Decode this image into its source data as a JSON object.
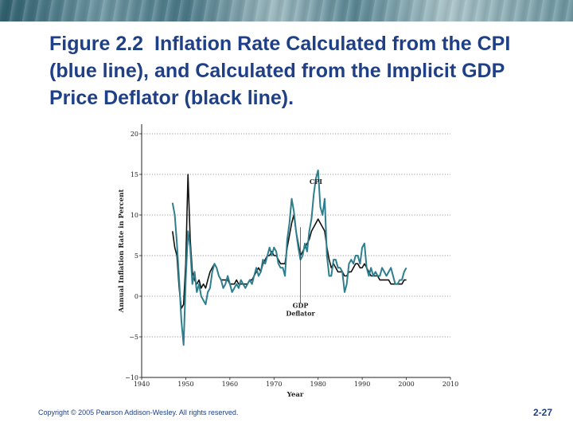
{
  "slide": {
    "figure_number": "Figure 2.2",
    "title": "Inflation Rate Calculated from the CPI (blue line), and Calculated from the Implicit GDP Price Deflator (black line).",
    "copyright": "Copyright © 2005 Pearson Addison-Wesley. All rights reserved.",
    "page_number": "2-27"
  },
  "colors": {
    "title": "#1f3f86",
    "cpi": "#2e7f8e",
    "deflator": "#111111",
    "grid": "#777777"
  },
  "chart_data": {
    "type": "line",
    "xlabel": "Year",
    "ylabel": "Annual Inflation Rate in Percent",
    "xlim": [
      1940,
      2010
    ],
    "ylim": [
      -10,
      20
    ],
    "xticks": [
      1940,
      1950,
      1960,
      1970,
      1980,
      1990,
      2000,
      2010
    ],
    "yticks": [
      -10,
      -5,
      0,
      5,
      10,
      15,
      20
    ],
    "ytick_labels": [
      "−10",
      "−5",
      "0",
      "5",
      "10",
      "15",
      "20"
    ],
    "grid": "horizontal dotted",
    "annotations": [
      {
        "text": "CPI",
        "x": 1979.5,
        "y": 13.8
      },
      {
        "text": "GDP",
        "x": 1976,
        "y": -1.4
      },
      {
        "text": "Deflator",
        "x": 1976,
        "y": -2.4
      }
    ],
    "series": [
      {
        "label": "CPI",
        "color": "#2e7f8e",
        "x": [
          1947.0,
          1947.5,
          1948.0,
          1948.5,
          1949.0,
          1949.5,
          1950.0,
          1950.5,
          1951.0,
          1951.5,
          1952.0,
          1952.5,
          1953.0,
          1953.5,
          1954.0,
          1954.5,
          1955.0,
          1955.5,
          1956.0,
          1956.5,
          1957.0,
          1957.5,
          1958.0,
          1958.5,
          1959.0,
          1959.5,
          1960.0,
          1960.5,
          1961.0,
          1961.5,
          1962.0,
          1962.5,
          1963.0,
          1963.5,
          1964.0,
          1964.5,
          1965.0,
          1965.5,
          1966.0,
          1966.5,
          1967.0,
          1967.5,
          1968.0,
          1968.5,
          1969.0,
          1969.5,
          1970.0,
          1970.5,
          1971.0,
          1971.5,
          1972.0,
          1972.5,
          1973.0,
          1973.5,
          1974.0,
          1974.5,
          1975.0,
          1975.5,
          1976.0,
          1976.5,
          1977.0,
          1977.5,
          1978.0,
          1978.5,
          1979.0,
          1979.5,
          1980.0,
          1980.5,
          1981.0,
          1981.5,
          1982.0,
          1982.5,
          1983.0,
          1983.5,
          1984.0,
          1984.5,
          1985.0,
          1985.5,
          1986.0,
          1986.5,
          1987.0,
          1987.5,
          1988.0,
          1988.5,
          1989.0,
          1989.5,
          1990.0,
          1990.5,
          1991.0,
          1991.5,
          1992.0,
          1992.5,
          1993.0,
          1993.5,
          1994.0,
          1994.5,
          1995.0,
          1995.5,
          1996.0,
          1996.5,
          1997.0,
          1997.5,
          1998.0,
          1998.5,
          1999.0,
          1999.5,
          2000.0
        ],
        "y": [
          11.5,
          10.0,
          6.5,
          2.0,
          -3.0,
          -6.0,
          2.0,
          8.0,
          6.0,
          1.5,
          3.0,
          0.5,
          1.5,
          0.0,
          -0.5,
          -1.0,
          0.5,
          1.0,
          3.0,
          4.0,
          3.5,
          2.5,
          2.0,
          1.0,
          1.5,
          2.5,
          1.5,
          0.5,
          1.0,
          1.5,
          1.0,
          2.0,
          1.5,
          1.0,
          1.5,
          2.0,
          1.5,
          2.5,
          3.5,
          2.5,
          3.0,
          4.5,
          4.0,
          5.0,
          6.0,
          5.0,
          6.0,
          5.5,
          4.0,
          3.5,
          3.5,
          2.5,
          7.0,
          9.0,
          12.0,
          10.5,
          8.0,
          6.0,
          4.5,
          5.0,
          6.5,
          5.5,
          8.0,
          9.5,
          12.5,
          14.5,
          15.5,
          11.0,
          10.0,
          12.0,
          5.0,
          2.5,
          2.5,
          4.5,
          4.5,
          3.5,
          3.5,
          3.0,
          0.5,
          1.5,
          4.0,
          4.5,
          4.0,
          5.0,
          5.0,
          4.0,
          6.0,
          6.5,
          3.5,
          2.5,
          3.5,
          2.5,
          3.0,
          2.5,
          2.5,
          3.5,
          3.0,
          2.5,
          3.0,
          3.5,
          2.5,
          1.5,
          1.5,
          2.0,
          2.0,
          3.0,
          3.5
        ]
      },
      {
        "label": "GDP Deflator",
        "color": "#111111",
        "x": [
          1947.0,
          1947.5,
          1948.0,
          1948.5,
          1949.0,
          1949.5,
          1950.0,
          1950.5,
          1951.0,
          1951.5,
          1952.0,
          1952.5,
          1953.0,
          1953.5,
          1954.0,
          1954.5,
          1955.0,
          1955.5,
          1956.0,
          1956.5,
          1957.0,
          1957.5,
          1958.0,
          1958.5,
          1959.0,
          1959.5,
          1960.0,
          1960.5,
          1961.0,
          1961.5,
          1962.0,
          1962.5,
          1963.0,
          1963.5,
          1964.0,
          1964.5,
          1965.0,
          1965.5,
          1966.0,
          1966.5,
          1967.0,
          1967.5,
          1968.0,
          1968.5,
          1969.0,
          1969.5,
          1970.0,
          1970.5,
          1971.0,
          1971.5,
          1972.0,
          1972.5,
          1973.0,
          1973.5,
          1974.0,
          1974.5,
          1975.0,
          1975.5,
          1976.0,
          1976.5,
          1977.0,
          1977.5,
          1978.0,
          1978.5,
          1979.0,
          1979.5,
          1980.0,
          1980.5,
          1981.0,
          1981.5,
          1982.0,
          1982.5,
          1983.0,
          1983.5,
          1984.0,
          1984.5,
          1985.0,
          1985.5,
          1986.0,
          1986.5,
          1987.0,
          1987.5,
          1988.0,
          1988.5,
          1989.0,
          1989.5,
          1990.0,
          1990.5,
          1991.0,
          1991.5,
          1992.0,
          1992.5,
          1993.0,
          1993.5,
          1994.0,
          1994.5,
          1995.0,
          1995.5,
          1996.0,
          1996.5,
          1997.0,
          1997.5,
          1998.0,
          1998.5,
          1999.0,
          1999.5,
          2000.0
        ],
        "y": [
          8.0,
          6.0,
          5.0,
          1.0,
          -1.5,
          -1.0,
          4.0,
          15.0,
          7.0,
          3.0,
          2.0,
          1.5,
          2.0,
          1.0,
          1.5,
          1.0,
          2.0,
          3.0,
          3.5,
          4.0,
          3.5,
          2.5,
          2.0,
          2.0,
          2.0,
          2.0,
          1.5,
          1.5,
          1.5,
          2.0,
          1.5,
          1.5,
          1.5,
          1.5,
          1.5,
          2.0,
          2.0,
          2.5,
          3.0,
          3.5,
          3.0,
          4.0,
          4.5,
          5.0,
          5.0,
          5.5,
          5.0,
          5.0,
          4.5,
          4.0,
          4.0,
          4.0,
          6.0,
          7.5,
          9.0,
          10.0,
          8.0,
          6.5,
          5.0,
          5.5,
          6.0,
          6.5,
          7.0,
          8.0,
          8.5,
          9.0,
          9.5,
          9.0,
          8.5,
          8.0,
          6.0,
          4.5,
          3.5,
          4.0,
          3.5,
          3.0,
          3.0,
          3.0,
          2.5,
          2.5,
          3.0,
          3.0,
          3.5,
          4.0,
          4.0,
          3.5,
          3.5,
          4.0,
          3.5,
          3.0,
          2.5,
          2.5,
          2.5,
          2.5,
          2.0,
          2.0,
          2.0,
          2.0,
          2.0,
          1.5,
          1.5,
          1.5,
          1.5,
          1.5,
          1.5,
          2.0,
          2.0
        ]
      }
    ]
  }
}
